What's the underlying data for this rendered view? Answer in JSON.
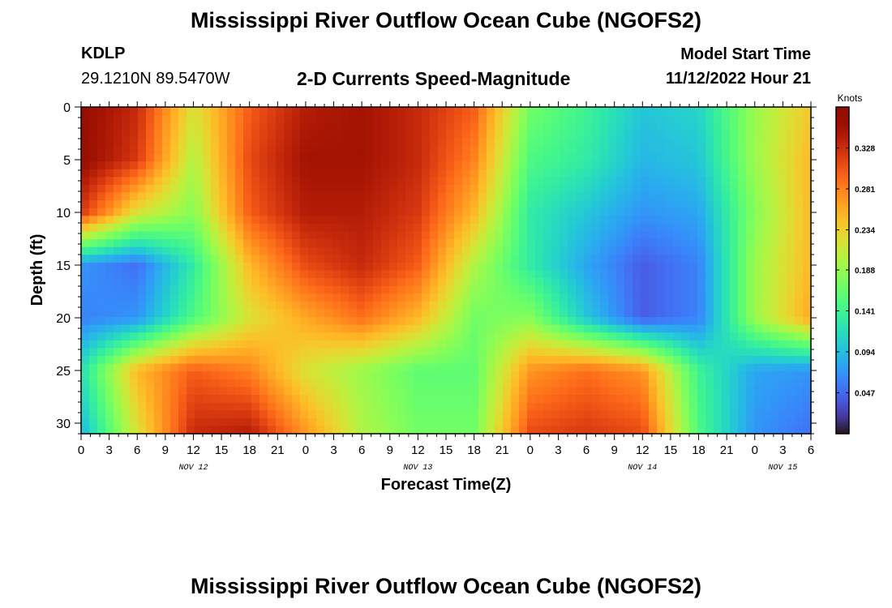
{
  "header": {
    "title": "Mississippi River Outflow Ocean Cube (NGOFS2)",
    "station_id": "KDLP",
    "coordinates": "29.1210N  89.5470W",
    "variable": "2-D Currents Speed-Magnitude",
    "model_start_label": "Model Start Time",
    "model_start_value": "11/12/2022 Hour 21"
  },
  "footer": {
    "title": "Mississippi River Outflow Ocean Cube (NGOFS2)"
  },
  "chart_data": {
    "type": "heatmap",
    "title": "2-D Currents Speed-Magnitude",
    "xlabel": "Forecast Time(Z)",
    "ylabel": "Depth (ft)",
    "colorbar_label": "Knots",
    "x_hours_range": [
      0,
      78
    ],
    "x_tick_labels": [
      "0",
      "3",
      "6",
      "9",
      "12",
      "15",
      "18",
      "21",
      "0",
      "3",
      "6",
      "9",
      "12",
      "15",
      "18",
      "21",
      "0",
      "3",
      "6",
      "9",
      "12",
      "15",
      "18",
      "21",
      "0",
      "3",
      "6"
    ],
    "date_labels": [
      {
        "label": "NOV 12",
        "at_hour": 12
      },
      {
        "label": "NOV 13",
        "at_hour": 36
      },
      {
        "label": "NOV 14",
        "at_hour": 60
      },
      {
        "label": "NOV 15",
        "at_hour": 75
      }
    ],
    "ylim": [
      0,
      31
    ],
    "y_inverted": true,
    "y_ticks": [
      0,
      5,
      10,
      15,
      20,
      25,
      30
    ],
    "clim": [
      0,
      0.375
    ],
    "colorbar_ticks": [
      0.047,
      0.094,
      0.141,
      0.188,
      0.234,
      0.281,
      0.328
    ],
    "colormap": "turbo",
    "grid": {
      "x_hours": [
        0,
        6,
        12,
        18,
        24,
        30,
        36,
        42,
        48,
        54,
        60,
        66,
        72,
        78
      ],
      "depth_ft": [
        0,
        5,
        10,
        15,
        20,
        25,
        31
      ],
      "values": [
        [
          0.36,
          0.33,
          0.22,
          0.3,
          0.34,
          0.35,
          0.33,
          0.3,
          0.17,
          0.14,
          0.1,
          0.11,
          0.19,
          0.24
        ],
        [
          0.36,
          0.32,
          0.2,
          0.31,
          0.35,
          0.35,
          0.33,
          0.28,
          0.15,
          0.13,
          0.09,
          0.1,
          0.19,
          0.25
        ],
        [
          0.32,
          0.22,
          0.18,
          0.3,
          0.34,
          0.34,
          0.32,
          0.25,
          0.13,
          0.1,
          0.07,
          0.08,
          0.18,
          0.25
        ],
        [
          0.07,
          0.05,
          0.13,
          0.25,
          0.31,
          0.33,
          0.3,
          0.2,
          0.13,
          0.08,
          0.04,
          0.06,
          0.19,
          0.25
        ],
        [
          0.06,
          0.07,
          0.15,
          0.22,
          0.26,
          0.29,
          0.25,
          0.17,
          0.18,
          0.1,
          0.04,
          0.06,
          0.19,
          0.26
        ],
        [
          0.12,
          0.25,
          0.3,
          0.28,
          0.22,
          0.19,
          0.16,
          0.16,
          0.27,
          0.29,
          0.27,
          0.14,
          0.08,
          0.07
        ],
        [
          0.09,
          0.22,
          0.33,
          0.34,
          0.27,
          0.2,
          0.17,
          0.17,
          0.31,
          0.32,
          0.31,
          0.15,
          0.07,
          0.05
        ]
      ]
    }
  }
}
